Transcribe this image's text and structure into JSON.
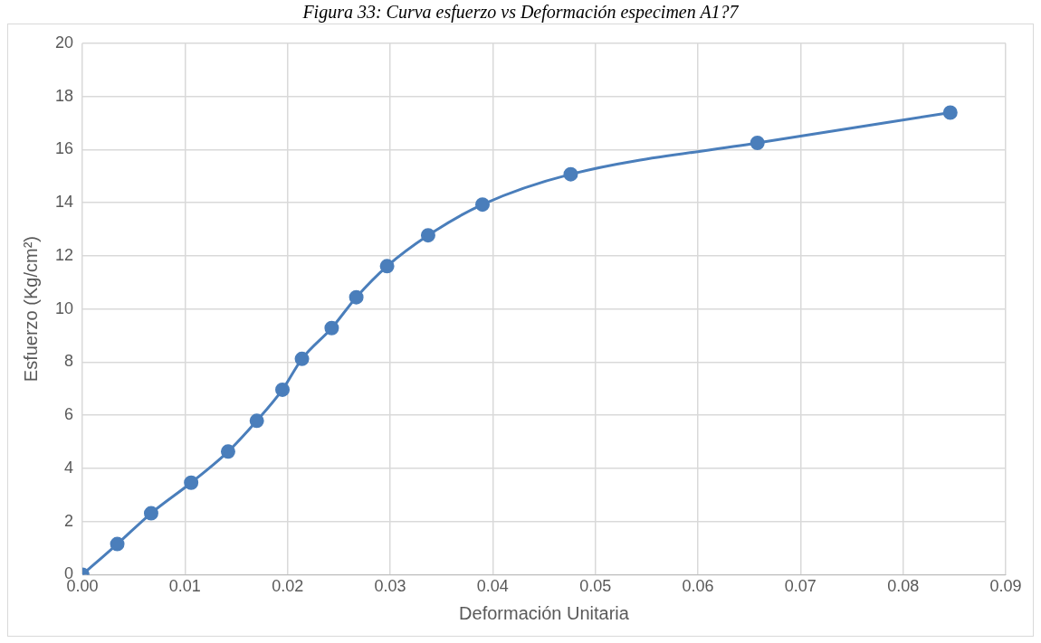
{
  "chart_data": {
    "type": "line",
    "title": "Figura 33: Curva esfuerzo vs Deformación especimen A1?7",
    "xlabel": "Deformación Unitaria",
    "ylabel": "Esfuerzo (Kg/cm²)",
    "x": [
      0,
      0.0034,
      0.0067,
      0.0106,
      0.0142,
      0.017,
      0.0195,
      0.0214,
      0.0243,
      0.0267,
      0.0297,
      0.0337,
      0.039,
      0.0476,
      0.0658,
      0.0846
    ],
    "series": [
      {
        "color": "#4a7ebb",
        "values": [
          0,
          1.15,
          2.31,
          3.46,
          4.63,
          5.79,
          6.96,
          8.12,
          9.28,
          10.44,
          11.61,
          12.77,
          13.93,
          15.07,
          16.25,
          17.39
        ]
      }
    ],
    "xlim": [
      0,
      0.09
    ],
    "xticks": [
      {
        "value": 0,
        "label": "0.00"
      },
      {
        "value": 0.01,
        "label": "0.01"
      },
      {
        "value": 0.02,
        "label": "0.02"
      },
      {
        "value": 0.03,
        "label": "0.03"
      },
      {
        "value": 0.04,
        "label": "0.04"
      },
      {
        "value": 0.05,
        "label": "0.05"
      },
      {
        "value": 0.06,
        "label": "0.06"
      },
      {
        "value": 0.07,
        "label": "0.07"
      },
      {
        "value": 0.08,
        "label": "0.08"
      },
      {
        "value": 0.09,
        "label": "0.09"
      }
    ],
    "ylim": [
      0,
      20
    ],
    "yticks": [
      0,
      2,
      4,
      6,
      8,
      10,
      12,
      14,
      16,
      18,
      20
    ],
    "grid": true,
    "legend": false,
    "marker": "circle",
    "line_style": "solid"
  }
}
